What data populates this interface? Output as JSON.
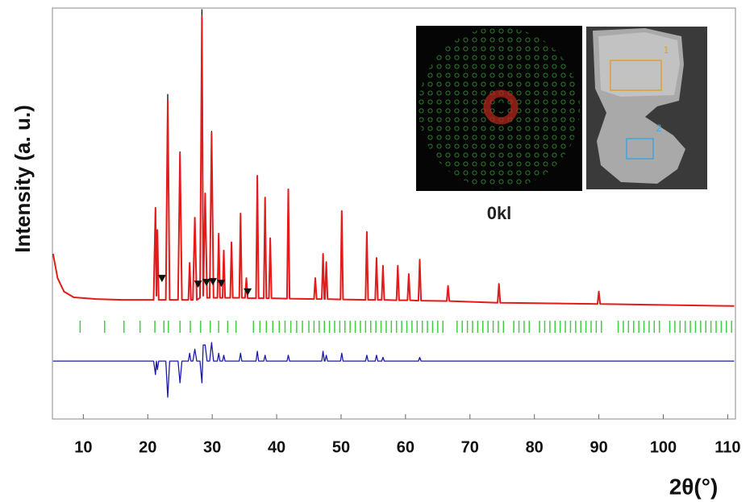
{
  "chart_data": {
    "type": "line",
    "xlabel": "2θ(°)",
    "ylabel": "Intensity (a. u.)",
    "xlim": [
      5.2,
      111.2
    ],
    "ylim": [
      0,
      100
    ],
    "xticks": [
      10,
      20,
      30,
      40,
      50,
      60,
      70,
      80,
      90,
      100,
      110
    ],
    "x": [
      5.3,
      6,
      7,
      8.5,
      12,
      16,
      20.9,
      21.2,
      21.35,
      21.5,
      21.7,
      22.8,
      23.1,
      23.4,
      24.7,
      25.0,
      25.3,
      26.3,
      26.5,
      26.7,
      27.0,
      27.3,
      27.6,
      28.1,
      28.4,
      28.6,
      28.9,
      29.2,
      29.6,
      29.9,
      30.2,
      30.8,
      31.0,
      31.2,
      31.6,
      31.8,
      32.0,
      32.8,
      33.0,
      33.2,
      34.2,
      34.4,
      34.6,
      35.1,
      35.3,
      35.5,
      36.8,
      37.0,
      37.2,
      38.0,
      38.2,
      38.4,
      38.8,
      39.0,
      39.2,
      41.6,
      41.8,
      42.0,
      45.8,
      46.0,
      46.2,
      47.0,
      47.2,
      47.4,
      47.5,
      47.7,
      47.9,
      49.9,
      50.1,
      50.3,
      53.8,
      54.0,
      54.2,
      55.3,
      55.5,
      55.7,
      56.3,
      56.5,
      56.7,
      58.6,
      58.8,
      59.0,
      60.3,
      60.5,
      60.7,
      62.0,
      62.2,
      62.4,
      66.4,
      66.6,
      66.8,
      74.3,
      74.5,
      74.7,
      89.8,
      90.0,
      90.2,
      111.0
    ],
    "series": [
      {
        "color": "#111111",
        "values": [
          40.2,
          34.3,
          31,
          29.6,
          29.2,
          29,
          29,
          51.4,
          30,
          46,
          29,
          29,
          79,
          29,
          29,
          65,
          29,
          29,
          38,
          29,
          29,
          49,
          29,
          29.5,
          99.6,
          30,
          54.9,
          29.5,
          29.5,
          70,
          29.5,
          29.5,
          45.1,
          29.5,
          29.5,
          41,
          29.5,
          29.5,
          43,
          29.5,
          29.5,
          50,
          29.5,
          29.5,
          34.3,
          29.4,
          29.4,
          59.2,
          29.4,
          29.4,
          53.9,
          29.4,
          29.4,
          44,
          29.4,
          29.3,
          55.9,
          29.3,
          29.2,
          34.3,
          29.2,
          29.2,
          40.2,
          29.2,
          29.2,
          38.2,
          29.2,
          29.1,
          50.6,
          29.1,
          29,
          45.5,
          29,
          29,
          39.2,
          29,
          29,
          37.3,
          29,
          28.9,
          37.3,
          28.9,
          28.9,
          35.3,
          28.9,
          28.8,
          38.8,
          28.8,
          28.7,
          32.4,
          28.7,
          28.3,
          32.9,
          28.3,
          28,
          31,
          28,
          27.5
        ]
      },
      {
        "color": "#e31b1b",
        "values": [
          40.2,
          34.3,
          31,
          29.6,
          29.2,
          29,
          29,
          51.4,
          30,
          46,
          29,
          29,
          77.5,
          29,
          29,
          64.7,
          29,
          29,
          38,
          29,
          29,
          49,
          29,
          29.5,
          98,
          30,
          54.9,
          29.5,
          29.5,
          69.6,
          29.5,
          29.5,
          45.1,
          29.5,
          29.5,
          41,
          29.5,
          29.5,
          43,
          29.5,
          29.5,
          50,
          29.5,
          29.5,
          34.3,
          29.4,
          29.4,
          59.2,
          29.4,
          29.4,
          53.9,
          29.4,
          29.4,
          44,
          29.4,
          29.3,
          55.9,
          29.3,
          29.2,
          34.3,
          29.2,
          29.2,
          40.2,
          29.2,
          29.2,
          38.2,
          29.2,
          29.1,
          50.6,
          29.1,
          29,
          45.5,
          29,
          29,
          39.2,
          29,
          29,
          37.3,
          29,
          28.9,
          37.3,
          28.9,
          28.9,
          35.3,
          28.9,
          28.8,
          38.8,
          28.8,
          28.7,
          32.4,
          28.7,
          28.3,
          32.9,
          28.3,
          28,
          31,
          28,
          27.5
        ]
      },
      {
        "color": "#1a1aa8",
        "values": [
          14.1,
          14.1,
          14.1,
          14.1,
          14.1,
          14.1,
          14.1,
          10.8,
          14.1,
          12,
          14.1,
          14.1,
          5.3,
          14.1,
          14.1,
          8.8,
          14.1,
          14.1,
          16,
          14.1,
          14.1,
          17,
          14.1,
          14.1,
          8.8,
          18,
          18,
          14.1,
          14.1,
          18.6,
          14.1,
          14.1,
          16,
          14.1,
          14.1,
          15.5,
          14.1,
          14.1,
          14.1,
          14.1,
          14.1,
          16,
          14.1,
          14.1,
          14.1,
          14.1,
          14.1,
          16.5,
          14.1,
          14.1,
          15.5,
          14.1,
          14.1,
          14.1,
          14.1,
          14.1,
          15.5,
          14.1,
          14.1,
          14.1,
          14.1,
          14.1,
          16.5,
          14.1,
          14.1,
          15.5,
          14.1,
          14.1,
          16,
          14.1,
          14.1,
          15.5,
          14.1,
          14.1,
          15.5,
          14.1,
          14.1,
          15,
          14.1,
          14.1,
          14.1,
          14.1,
          14.1,
          14.1,
          14.1,
          14.1,
          15,
          14.1,
          14.1,
          14.1,
          14.1,
          14.1,
          14.1,
          14.1,
          14.1,
          14.1,
          14.1,
          14.1
        ]
      }
    ],
    "bragg_color": "#3ecf3e",
    "bragg_positions": [
      9.5,
      13.3,
      16.3,
      18.8,
      21.1,
      22.5,
      23.2,
      25.0,
      26.6,
      28.2,
      29.7,
      31.0,
      32.4,
      33.7,
      36.4,
      37.4,
      38.4,
      39.4,
      40.4,
      41.3,
      42.2,
      43.1,
      44.0,
      45.0,
      45.8,
      46.6,
      47.4,
      48.2,
      49.0,
      49.8,
      50.6,
      51.4,
      52.2,
      53.0,
      53.8,
      54.6,
      55.4,
      56.2,
      57.0,
      57.8,
      58.6,
      59.4,
      60.2,
      61.0,
      61.8,
      62.6,
      63.4,
      64.2,
      65.0,
      65.8,
      68.0,
      68.8,
      69.6,
      70.4,
      71.2,
      72.0,
      72.8,
      73.6,
      74.4,
      75.2,
      76.8,
      77.6,
      78.4,
      79.2,
      80.8,
      81.6,
      82.4,
      83.2,
      84.0,
      84.8,
      85.6,
      86.4,
      87.2,
      88.0,
      88.8,
      89.6,
      90.4,
      93.0,
      93.8,
      94.6,
      95.4,
      96.2,
      97.0,
      97.8,
      98.6,
      99.4,
      101.0,
      101.8,
      102.6,
      103.4,
      104.2,
      105.0,
      105.8,
      106.6,
      107.4,
      108.2,
      109.0,
      109.8,
      110.6
    ],
    "markers": {
      "x": [
        22.2,
        27.8,
        29.1,
        30.1,
        31.4,
        35.5
      ],
      "y": [
        34.3,
        32.9,
        33.3,
        33.5,
        33.1,
        31
      ]
    },
    "annotations": [
      "0kl",
      "1",
      "2"
    ]
  }
}
